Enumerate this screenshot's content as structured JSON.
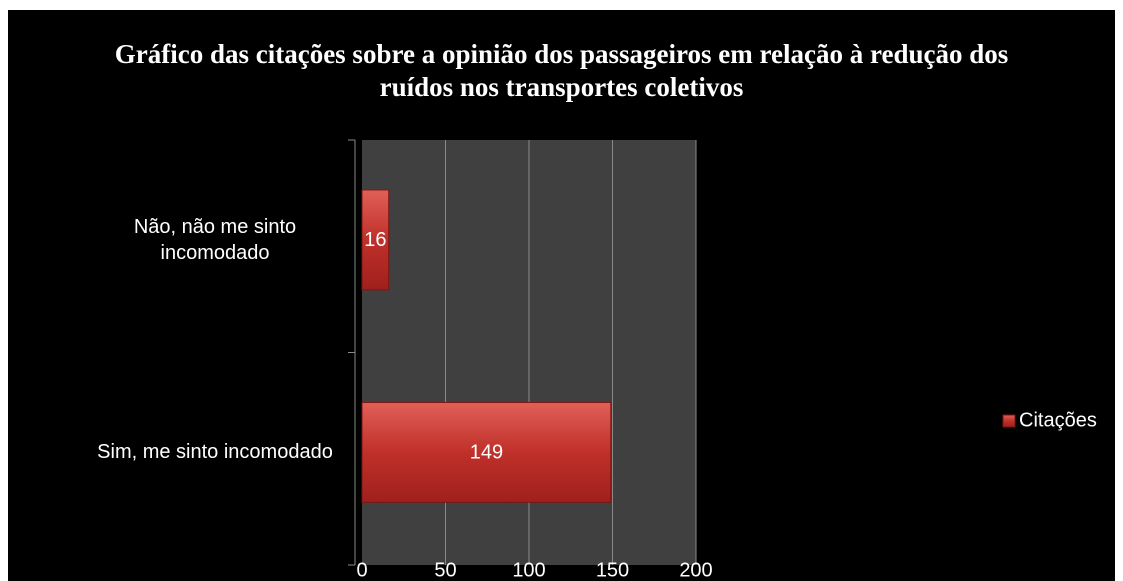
{
  "chart_data": {
    "type": "hbar",
    "title": "Gráfico das citações sobre a opinião dos passageiros em relação à redução dos ruídos nos transportes coletivos",
    "categories": [
      "Não, não me sinto incomodado",
      "Sim, me sinto incomodado"
    ],
    "series": [
      {
        "name": "Citações",
        "color": "#c0302a",
        "values": [
          16,
          149
        ]
      }
    ],
    "xlim": [
      0,
      200
    ],
    "xticks": [
      0,
      50,
      100,
      150,
      200
    ],
    "grid": true,
    "legend": "right"
  }
}
